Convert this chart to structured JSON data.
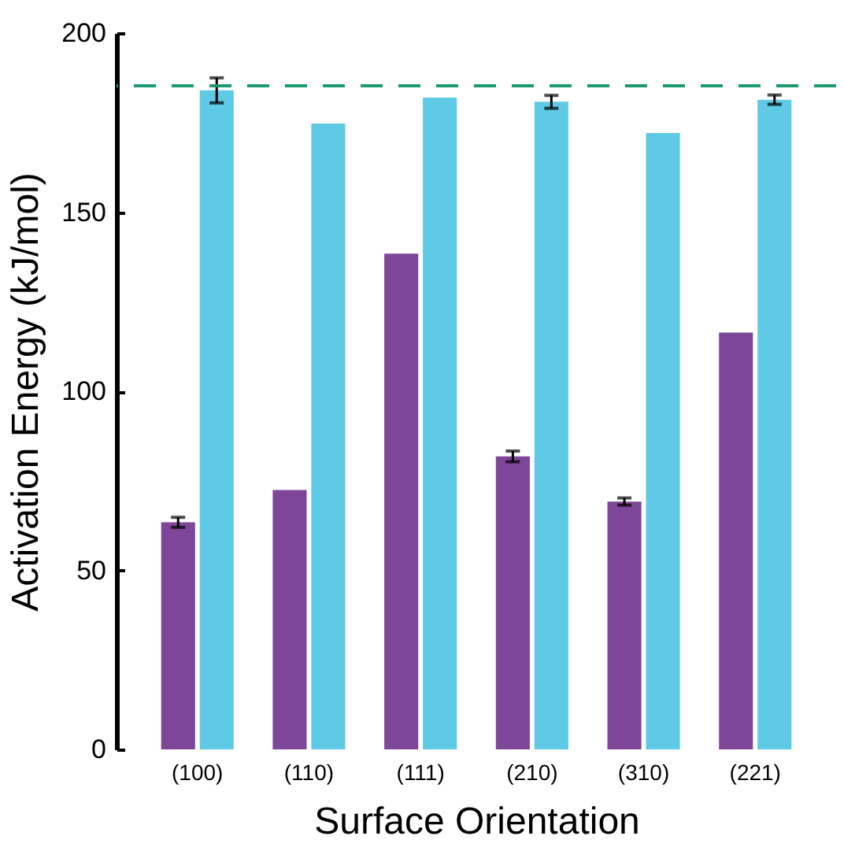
{
  "chart_data": {
    "type": "bar",
    "xlabel": "Surface Orientation",
    "ylabel": "Activation Energy (kJ/mol)",
    "categories": [
      "(100)",
      "(110)",
      "(111)",
      "(210)",
      "(310)",
      "(221)"
    ],
    "series": [
      {
        "color": "#7d4698",
        "values": [
          63.4,
          72.4,
          138.4,
          81.8,
          69.2,
          116.4
        ],
        "errors": [
          1.4,
          null,
          null,
          1.5,
          1,
          null
        ]
      },
      {
        "color": "#5ecae6",
        "values": [
          184,
          174.7,
          182,
          180.8,
          172.1,
          181.4
        ],
        "errors": [
          3.5,
          null,
          null,
          1.8,
          null,
          1.3
        ]
      }
    ],
    "ylim": [
      0,
      200
    ],
    "yticks": [
      0,
      50,
      100,
      150,
      200
    ],
    "ref_lines": [
      {
        "axis": "y",
        "value": 185.3,
        "color": "#1a9a6e",
        "line_style": "dashed"
      }
    ],
    "grid": false,
    "legend": false
  }
}
